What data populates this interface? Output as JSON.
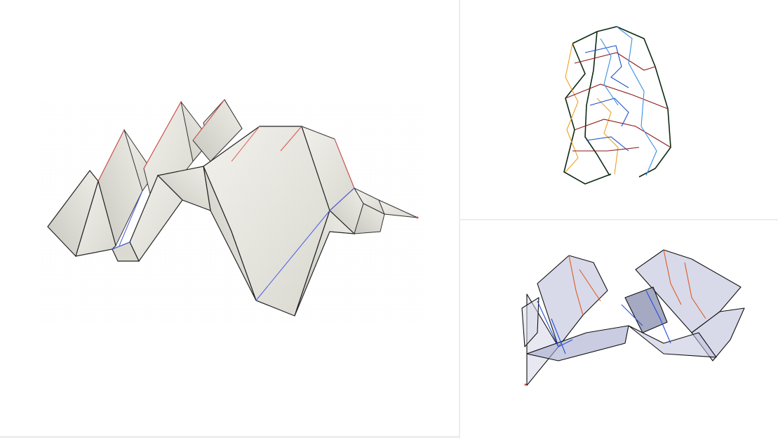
{
  "app": {
    "views": [
      {
        "name": "folded-paper-3d",
        "style": "textured"
      },
      {
        "name": "crease-pattern-top",
        "style": "wireframe"
      },
      {
        "name": "folded-state-translucent",
        "style": "translucent"
      }
    ]
  },
  "colors": {
    "background": "#ffffff",
    "divider": "#ededed",
    "paper": "#e9e8e2",
    "paper_shade": "#d6d5cd",
    "outline": "#111111",
    "mountain_fold": "#e0504a",
    "valley_fold": "#4a5ee0",
    "crease_orange": "#f0a020",
    "crease_darkred": "#8b1a1a",
    "crease_blue": "#2050c8",
    "crease_lightblue": "#3a8fe0",
    "outline_dark_green": "#0d2a12",
    "translucent_fill": "#b8bcd8"
  }
}
